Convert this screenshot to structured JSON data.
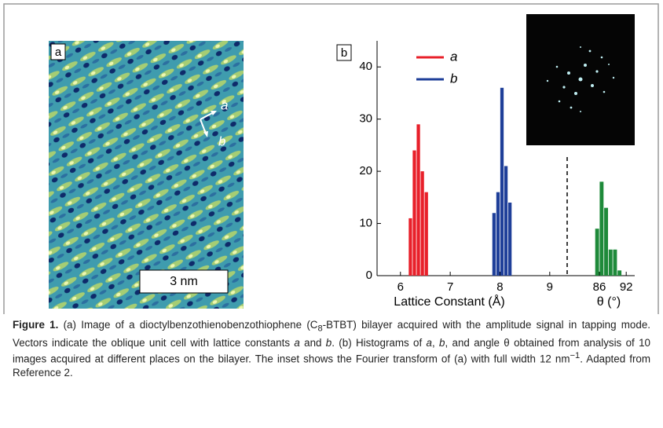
{
  "panel_a": {
    "label": "a",
    "vector_a": "a",
    "vector_b": "b",
    "scale_bar": "3 nm"
  },
  "chart_data": {
    "type": "histogram",
    "label": "b",
    "xlabel": "Lattice Constant (Å)",
    "x2label": "θ (°)",
    "ylim": [
      0,
      45
    ],
    "yticks": [
      0,
      10,
      20,
      30,
      40
    ],
    "xlim": [
      5.53,
      9.35
    ],
    "xticks": [
      6,
      7,
      8,
      9
    ],
    "x2lim": [
      78.8,
      93.9
    ],
    "x2ticks": [
      86,
      92
    ],
    "series": [
      {
        "name": "a",
        "color": "#e8202a",
        "bins": [
          6.16,
          6.24,
          6.32,
          6.4,
          6.48,
          6.56
        ],
        "values": [
          11,
          24,
          29,
          20,
          16
        ]
      },
      {
        "name": "b",
        "color": "#1f3f99",
        "bins": [
          7.84,
          7.92,
          8.0,
          8.08,
          8.16,
          8.24
        ],
        "values": [
          12,
          16,
          36,
          21,
          14
        ]
      },
      {
        "color": "#1e8a3a",
        "axis": "x2",
        "bins": [
          85,
          86,
          87,
          88,
          89,
          90,
          91
        ],
        "values": [
          9,
          18,
          13,
          5,
          5,
          1
        ]
      }
    ]
  },
  "caption": {
    "label": "Figure 1.",
    "segments": [
      " (a) Image of a dioctylbenzothienobenzothiophene (C",
      "8",
      "-BTBT) bilayer acquired with the amplitude signal in tapping mode. Vectors indicate the oblique unit cell with lattice constants ",
      "a",
      " and ",
      "b",
      ". (b) Histograms of ",
      "a",
      ", ",
      "b",
      ", and angle θ obtained from analysis of 10 images acquired at different places on the bilayer. The inset shows the Fourier transform of (a) with full width 12 nm",
      "−1",
      ". Adapted from Reference 2."
    ]
  }
}
